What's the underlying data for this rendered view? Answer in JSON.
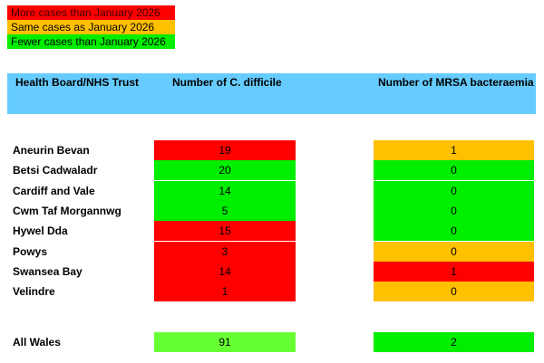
{
  "legend": {
    "more": "More cases than January 2026",
    "same": "Same cases as January 2026",
    "fewer": "Fewer cases than January 2026"
  },
  "header": {
    "board": "Health Board/NHS Trust",
    "cdiff": "Number of C. difficile",
    "mrsa": "Number of MRSA bacteraemia"
  },
  "colors": {
    "more": "#ff0000",
    "same": "#ffc000",
    "fewer": "#00ee00",
    "fewer_total": "#66ff33",
    "header": "#66ccff"
  },
  "rows": [
    {
      "name": "Aneurin Bevan",
      "cdiff": "19",
      "cdiff_status": "more",
      "mrsa": "1",
      "mrsa_status": "same"
    },
    {
      "name": "Betsi Cadwaladr",
      "cdiff": "20",
      "cdiff_status": "fewer",
      "mrsa": "0",
      "mrsa_status": "fewer"
    },
    {
      "name": "Cardiff and Vale",
      "cdiff": "14",
      "cdiff_status": "fewer",
      "mrsa": "0",
      "mrsa_status": "fewer"
    },
    {
      "name": "Cwm Taf Morgannwg",
      "cdiff": "5",
      "cdiff_status": "fewer",
      "mrsa": "0",
      "mrsa_status": "fewer"
    },
    {
      "name": "Hywel Dda",
      "cdiff": "15",
      "cdiff_status": "more",
      "mrsa": "0",
      "mrsa_status": "fewer"
    },
    {
      "name": "Powys",
      "cdiff": "3",
      "cdiff_status": "more",
      "mrsa": "0",
      "mrsa_status": "same"
    },
    {
      "name": "Swansea Bay",
      "cdiff": "14",
      "cdiff_status": "more",
      "mrsa": "1",
      "mrsa_status": "more"
    },
    {
      "name": "Velindre",
      "cdiff": "1",
      "cdiff_status": "more",
      "mrsa": "0",
      "mrsa_status": "same"
    }
  ],
  "total": {
    "name": "All Wales",
    "cdiff": "91",
    "cdiff_status": "fewer_total",
    "mrsa": "2",
    "mrsa_status": "fewer"
  }
}
